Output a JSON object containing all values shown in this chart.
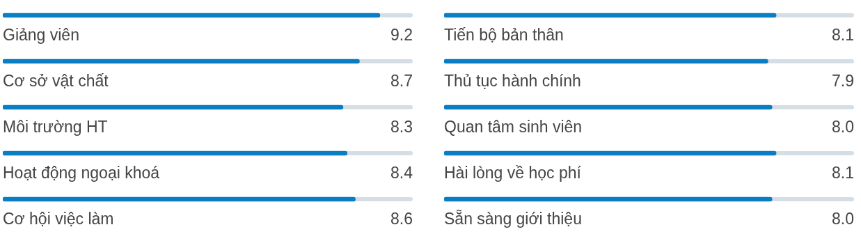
{
  "chart_data": [
    {
      "type": "bar",
      "orientation": "horizontal",
      "categories": [
        "Giảng viên",
        "Cơ sở vật chất",
        "Môi trường HT",
        "Hoạt động ngoại khoá",
        "Cơ hội việc làm"
      ],
      "values": [
        9.2,
        8.7,
        8.3,
        8.4,
        8.6
      ],
      "value_labels": [
        "9.2",
        "8.7",
        "8.3",
        "8.4",
        "8.6"
      ],
      "color": "#0a7ec2",
      "xlim": [
        0,
        10
      ],
      "tick_labels": "y"
    },
    {
      "type": "bar",
      "orientation": "horizontal",
      "categories": [
        "Tiến bộ bản thân",
        "Thủ tục hành chính",
        "Quan tâm sinh viên",
        "Hài lòng về học phí",
        "Sẵn sàng giới thiệu"
      ],
      "values": [
        8.1,
        7.9,
        8.0,
        8.1,
        8.0
      ],
      "value_labels": [
        "8.1",
        "7.9",
        "8.0",
        "8.1",
        "8.0"
      ],
      "color": "#0a7ec2",
      "xlim": [
        0,
        10
      ],
      "tick_labels": "y"
    }
  ]
}
